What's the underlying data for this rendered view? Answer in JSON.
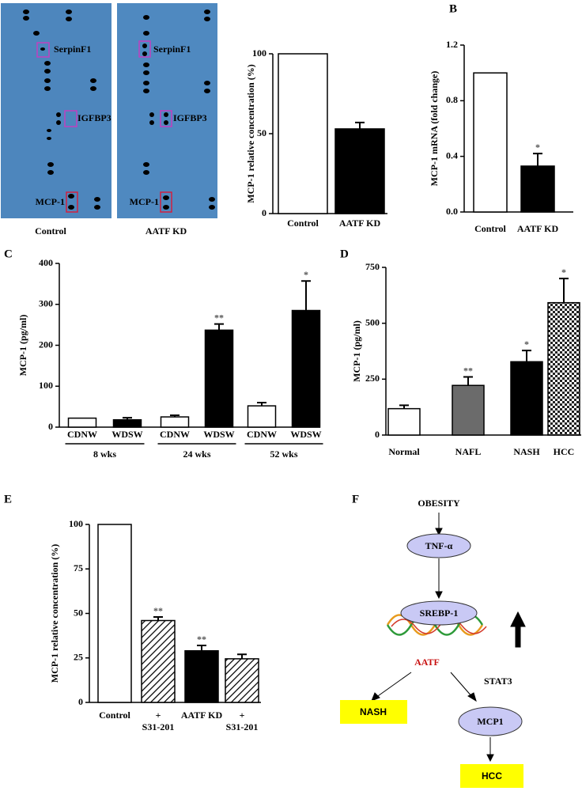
{
  "blots": {
    "panel": "A",
    "labels": [
      "SerpinF1",
      "IGFBP3",
      "MCP-1"
    ],
    "captions": [
      "Control",
      "AATF  KD"
    ]
  },
  "chart_data": [
    {
      "type": "bar",
      "ylabel": "MCP-1  relative concentration  (%)",
      "categories": [
        [
          "Control"
        ],
        [
          "AATF  KD"
        ]
      ],
      "values": [
        100,
        53
      ],
      "errors": [
        0,
        4
      ],
      "colors": [
        "#ffffff",
        "#000000"
      ],
      "patterns": [
        null,
        null
      ],
      "significance": [
        null,
        null
      ],
      "ylim": [
        0,
        100
      ],
      "yticks": [
        0,
        50,
        100
      ]
    },
    {
      "type": "bar",
      "panel": "B",
      "ylabel": "MCP-1 mRNA (fold change)",
      "categories": [
        [
          "Control"
        ],
        [
          "AATF  KD"
        ]
      ],
      "values": [
        1.0,
        0.33
      ],
      "errors": [
        0,
        0.09
      ],
      "colors": [
        "#ffffff",
        "#000000"
      ],
      "patterns": [
        null,
        null
      ],
      "significance": [
        null,
        "*"
      ],
      "ylim": [
        0,
        1.2
      ],
      "yticks": [
        {
          "value": 0,
          "label": "0.0"
        },
        0.4,
        0.8,
        1.2
      ]
    },
    {
      "type": "bar",
      "panel": "C",
      "ylabel": "MCP-1  (pg/ml)",
      "categories": [
        [
          "CDNW"
        ],
        [
          "WDSW"
        ],
        [
          "CDNW"
        ],
        [
          "WDSW"
        ],
        [
          "CDNW"
        ],
        [
          "WDSW"
        ]
      ],
      "groups": [
        "8 wks",
        "24 wks",
        "52 wks"
      ],
      "values": [
        22,
        18,
        25,
        237,
        52,
        285
      ],
      "errors": [
        0,
        5,
        4,
        15,
        8,
        72
      ],
      "colors": [
        "#ffffff",
        "#000000",
        "#ffffff",
        "#000000",
        "#ffffff",
        "#000000"
      ],
      "patterns": [
        null,
        null,
        null,
        null,
        null,
        null
      ],
      "significance": [
        null,
        null,
        null,
        "**",
        null,
        "*"
      ],
      "ylim": [
        0,
        400
      ],
      "yticks": [
        0,
        100,
        200,
        300,
        400
      ]
    },
    {
      "type": "bar",
      "panel": "D",
      "ylabel": "MCP-1  (pg/ml)",
      "categories": [
        [
          "Normal"
        ],
        [
          "NAFL"
        ],
        [
          "NASH"
        ],
        [
          "HCC"
        ]
      ],
      "values": [
        118,
        222,
        328,
        592
      ],
      "errors": [
        15,
        38,
        50,
        108
      ],
      "colors": [
        "#ffffff",
        "#6b6b6b",
        "#000000",
        "#ffffff"
      ],
      "patterns": [
        null,
        null,
        null,
        "checker"
      ],
      "significance": [
        null,
        "**",
        "*",
        "*"
      ],
      "ylim": [
        0,
        750
      ],
      "yticks": [
        0,
        250,
        500,
        750
      ]
    },
    {
      "type": "bar",
      "panel": "E",
      "ylabel": "MCP-1  relative concentration (%)",
      "categories": [
        [
          "Control"
        ],
        [
          "+",
          "S31-201"
        ],
        [
          "AATF  KD"
        ],
        [
          "+",
          "S31-201"
        ]
      ],
      "values": [
        100,
        46,
        29,
        24.5
      ],
      "errors": [
        0,
        2,
        3,
        2.5
      ],
      "colors": [
        "#ffffff",
        "#ffffff",
        "#000000",
        "#333333"
      ],
      "patterns": [
        null,
        "hatch",
        null,
        "hatch"
      ],
      "significance": [
        null,
        "**",
        "**",
        null
      ],
      "ylim": [
        0,
        100
      ],
      "yticks": [
        0,
        25,
        50,
        75,
        100
      ]
    }
  ],
  "diagram": {
    "panel": "F",
    "nodes": [
      "OBESITY",
      "TNF-α",
      "SREBP-1",
      "AATF",
      "STAT3",
      "NASH",
      "MCP1",
      "HCC"
    ]
  }
}
